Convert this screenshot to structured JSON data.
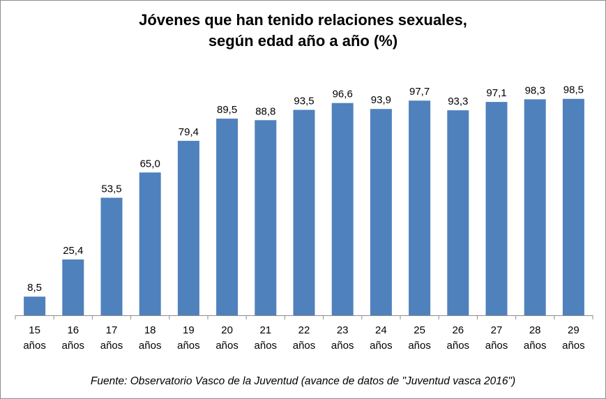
{
  "chart_data": {
    "type": "bar",
    "title_lines": [
      "Jóvenes que han  tenido relaciones sexuales,",
      "según edad año a año (%)"
    ],
    "categories": [
      [
        "15",
        "años"
      ],
      [
        "16",
        "años"
      ],
      [
        "17",
        "años"
      ],
      [
        "18",
        "años"
      ],
      [
        "19",
        "años"
      ],
      [
        "20",
        "años"
      ],
      [
        "21",
        "años"
      ],
      [
        "22",
        "años"
      ],
      [
        "23",
        "años"
      ],
      [
        "24",
        "años"
      ],
      [
        "25",
        "años"
      ],
      [
        "26",
        "años"
      ],
      [
        "27",
        "años"
      ],
      [
        "28",
        "años"
      ],
      [
        "29",
        "años"
      ]
    ],
    "values": [
      8.5,
      25.4,
      53.5,
      65.0,
      79.4,
      89.5,
      88.8,
      93.5,
      96.6,
      93.9,
      97.7,
      93.3,
      97.1,
      98.3,
      98.5
    ],
    "value_labels": [
      "8,5",
      "25,4",
      "53,5",
      "65,0",
      "79,4",
      "89,5",
      "88,8",
      "93,5",
      "96,6",
      "93,9",
      "97,7",
      "93,3",
      "97,1",
      "98,3",
      "98,5"
    ],
    "ylim": [
      0,
      100
    ],
    "bar_color": "#4F81BD",
    "grid": false,
    "legend": "none"
  },
  "source": "Fuente: Observatorio Vasco de la Juventud (avance de datos de \"Juventud vasca 2016\")"
}
